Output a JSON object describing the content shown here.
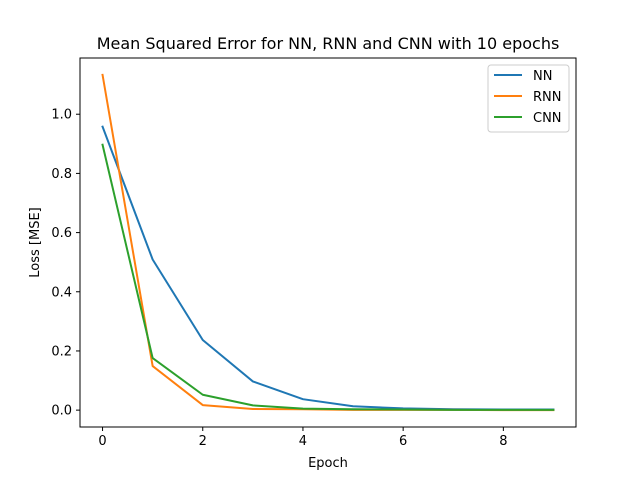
{
  "chart_data": {
    "type": "line",
    "title": "Mean Squared Error for NN, RNN and CNN with 10 epochs",
    "xlabel": "Epoch",
    "ylabel": "Loss [MSE]",
    "x": [
      0,
      1,
      2,
      3,
      4,
      5,
      6,
      7,
      8,
      9
    ],
    "xlim": [
      -0.45,
      9.45
    ],
    "ylim": [
      -0.057,
      1.19
    ],
    "xticks": [
      0,
      2,
      4,
      6,
      8
    ],
    "xtick_labels": [
      "0",
      "2",
      "4",
      "6",
      "8"
    ],
    "yticks": [
      0.0,
      0.2,
      0.4,
      0.6,
      0.8,
      1.0
    ],
    "ytick_labels": [
      "0.0",
      "0.2",
      "0.4",
      "0.6",
      "0.8",
      "1.0"
    ],
    "grid": false,
    "legend_position": "top-right",
    "series": [
      {
        "name": "NN",
        "color": "#1f77b4",
        "values": [
          0.958,
          0.509,
          0.237,
          0.097,
          0.037,
          0.013,
          0.006,
          0.003,
          0.002,
          0.002
        ]
      },
      {
        "name": "RNN",
        "color": "#ff7f0e",
        "values": [
          1.133,
          0.149,
          0.017,
          0.004,
          0.003,
          0.001,
          0.001,
          0.001,
          0.0,
          0.0
        ]
      },
      {
        "name": "CNN",
        "color": "#2ca02c",
        "values": [
          0.897,
          0.176,
          0.052,
          0.016,
          0.005,
          0.003,
          0.002,
          0.001,
          0.001,
          0.001
        ]
      }
    ]
  }
}
